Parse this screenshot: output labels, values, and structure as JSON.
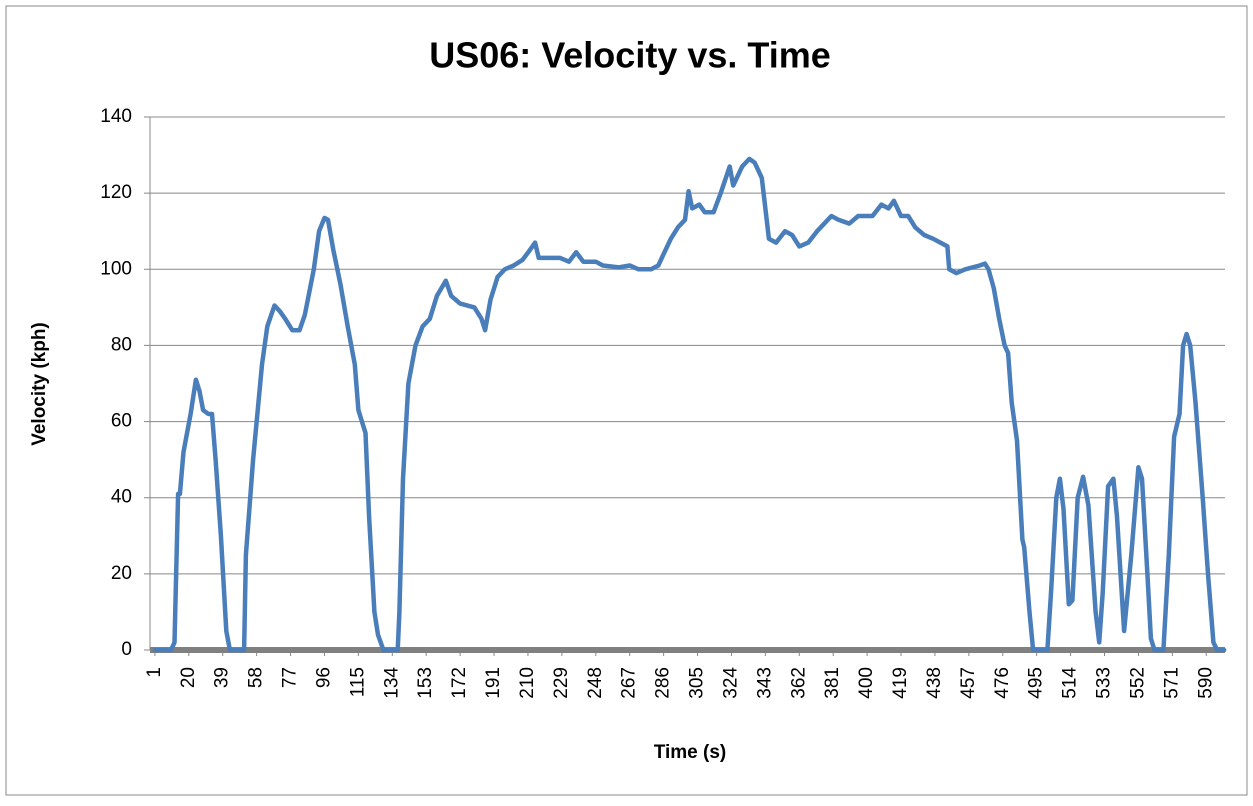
{
  "chart_data": {
    "type": "line",
    "title": "US06: Velocity vs. Time",
    "x_label": "Time (s)",
    "y_label": "Velocity (kph)",
    "x": [
      1,
      10,
      12,
      14,
      15,
      17,
      21,
      24,
      26,
      28,
      31,
      33,
      35,
      38,
      41,
      43,
      51,
      52,
      56,
      61,
      64,
      68,
      71,
      74,
      78,
      82,
      85,
      90,
      93,
      96,
      98,
      101,
      105,
      109,
      113,
      115,
      119,
      121,
      124,
      126,
      129,
      137,
      138,
      140,
      143,
      147,
      151,
      155,
      159,
      164,
      167,
      172,
      180,
      184,
      186,
      189,
      193,
      197,
      202,
      207,
      211,
      214,
      216,
      221,
      228,
      233,
      237,
      241,
      248,
      252,
      261,
      267,
      272,
      279,
      283,
      286,
      290,
      294,
      298,
      300,
      302,
      306,
      309,
      314,
      318,
      323,
      325,
      330,
      334,
      337,
      341,
      345,
      349,
      354,
      358,
      362,
      367,
      372,
      376,
      380,
      384,
      390,
      395,
      403,
      408,
      412,
      415,
      419,
      423,
      427,
      432,
      437,
      443,
      445,
      446,
      450,
      455,
      463,
      466,
      468,
      471,
      474,
      477,
      479,
      481,
      484,
      487,
      488,
      491,
      493,
      501,
      503,
      506,
      508,
      510,
      513,
      515,
      518,
      521,
      524,
      528,
      530,
      532,
      535,
      538,
      540,
      544,
      548,
      552,
      554,
      557,
      559,
      561,
      566,
      569,
      572,
      575,
      577,
      579,
      581,
      584,
      588,
      591,
      594,
      596,
      600
    ],
    "values": [
      0,
      0,
      2,
      41,
      41,
      52,
      62,
      71,
      68,
      63,
      62,
      62,
      50,
      30,
      5,
      0,
      0,
      25,
      50,
      75,
      85,
      90.5,
      89,
      87,
      84,
      84,
      88,
      100,
      110,
      113.5,
      113,
      105,
      96,
      85,
      75,
      63,
      57,
      35,
      10,
      4,
      0,
      0,
      10,
      45,
      70,
      80,
      85,
      87,
      93,
      97,
      93,
      91,
      90,
      87,
      84,
      92,
      98,
      100,
      101,
      102.5,
      105,
      107,
      103,
      103,
      103,
      102,
      104.5,
      102,
      102,
      101,
      100.5,
      101,
      100,
      100,
      101,
      104,
      108,
      111,
      113,
      120.5,
      116,
      117,
      115,
      115,
      120,
      127,
      122,
      127,
      129,
      128,
      124,
      108,
      107,
      110,
      109,
      106,
      107,
      110,
      112,
      114,
      113,
      112,
      114,
      114,
      117,
      116,
      118,
      114,
      114,
      111,
      109,
      108,
      106.5,
      106,
      100,
      99,
      100,
      101,
      101.5,
      100,
      95,
      87,
      80,
      78,
      65,
      55,
      29,
      27,
      10,
      0,
      0,
      15,
      40,
      45,
      37,
      12,
      13,
      40,
      45.5,
      38,
      10,
      2,
      15,
      43,
      45,
      35,
      5,
      25,
      48,
      45,
      20,
      3,
      0,
      0,
      25,
      56,
      62,
      80,
      83,
      80,
      65,
      40,
      20,
      2,
      0,
      0
    ],
    "color": "#4a7ebb",
    "xlim": [
      0.5,
      600.5
    ],
    "xticks": [
      1,
      20,
      39,
      58,
      77,
      96,
      115,
      134,
      153,
      172,
      191,
      210,
      229,
      248,
      267,
      286,
      305,
      324,
      343,
      362,
      381,
      400,
      419,
      438,
      457,
      476,
      495,
      514,
      533,
      552,
      571,
      590
    ],
    "ylim": [
      0,
      140
    ],
    "yticks": [
      0,
      20,
      40,
      60,
      80,
      100,
      120,
      140
    ],
    "grid": true
  }
}
